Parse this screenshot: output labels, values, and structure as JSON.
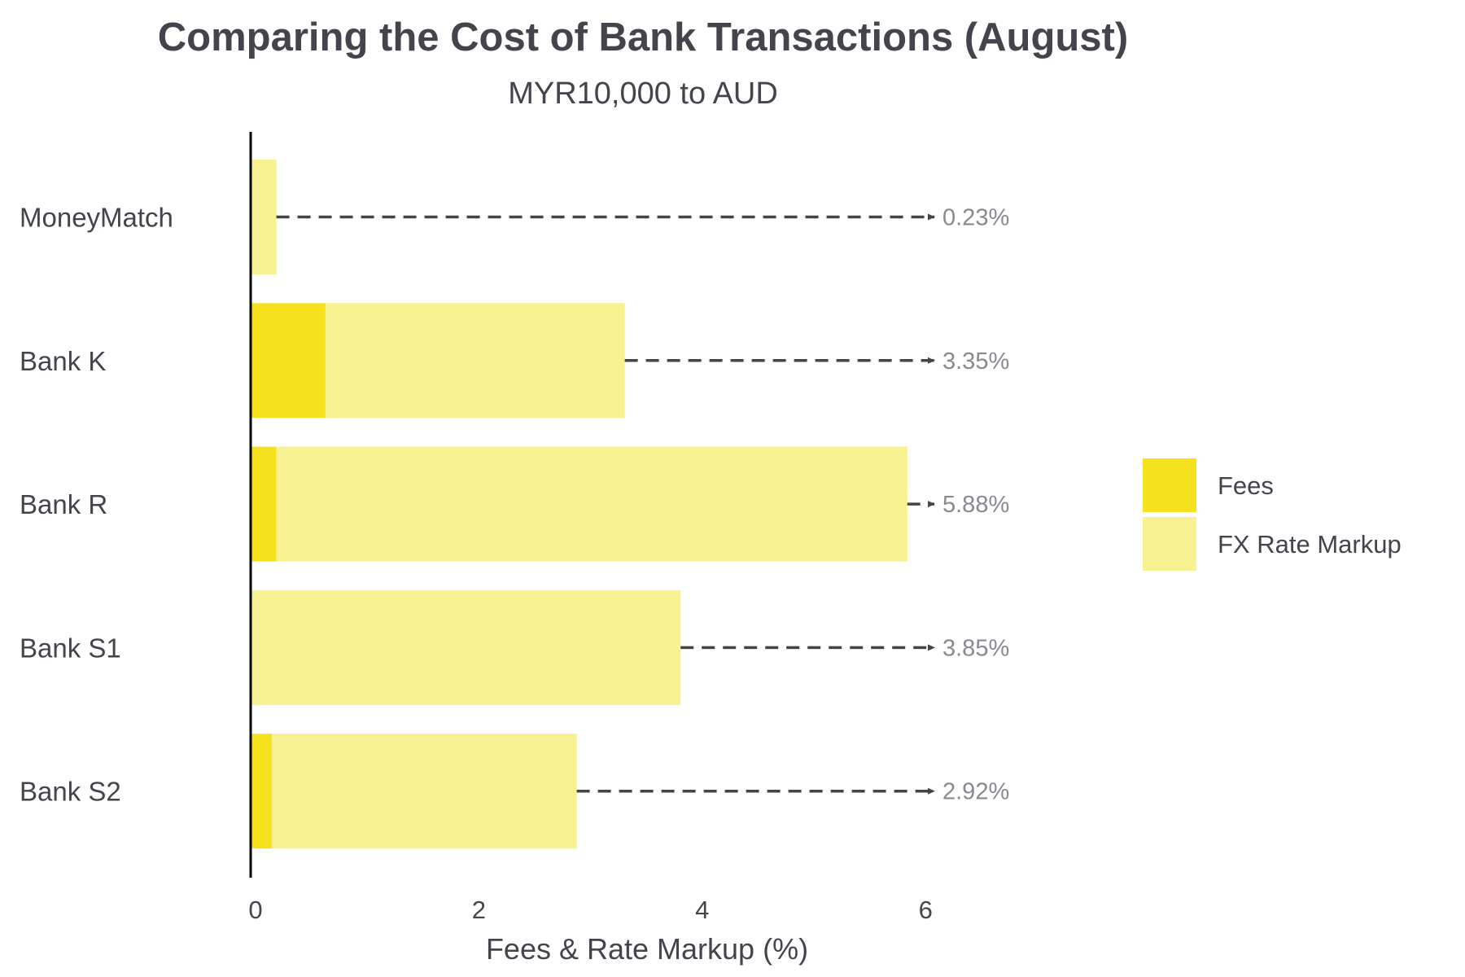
{
  "chart_data": {
    "type": "bar",
    "orientation": "horizontal",
    "stacked": true,
    "title": "Comparing the Cost of Bank Transactions (August)",
    "subtitle": "MYR10,000 to AUD",
    "xlabel": "Fees & Rate Markup (%)",
    "ylabel": "",
    "xlim": [
      0,
      7.5
    ],
    "xticks": [
      0,
      2,
      4,
      6
    ],
    "categories": [
      "MoneyMatch",
      "Bank K",
      "Bank R",
      "Bank S1",
      "Bank S2"
    ],
    "series": [
      {
        "name": "Fees",
        "color": "#f5e11e",
        "values": [
          0.0,
          0.67,
          0.23,
          0.0,
          0.19
        ]
      },
      {
        "name": "FX Rate Markup",
        "color": "#f7f191",
        "values": [
          0.23,
          2.68,
          5.65,
          3.85,
          2.73
        ]
      }
    ],
    "totals": [
      0.23,
      3.35,
      5.88,
      3.85,
      2.92
    ],
    "total_labels": [
      "0.23%",
      "3.35%",
      "5.88%",
      "3.85%",
      "2.92%"
    ],
    "legend_position": "right",
    "grid": false
  }
}
